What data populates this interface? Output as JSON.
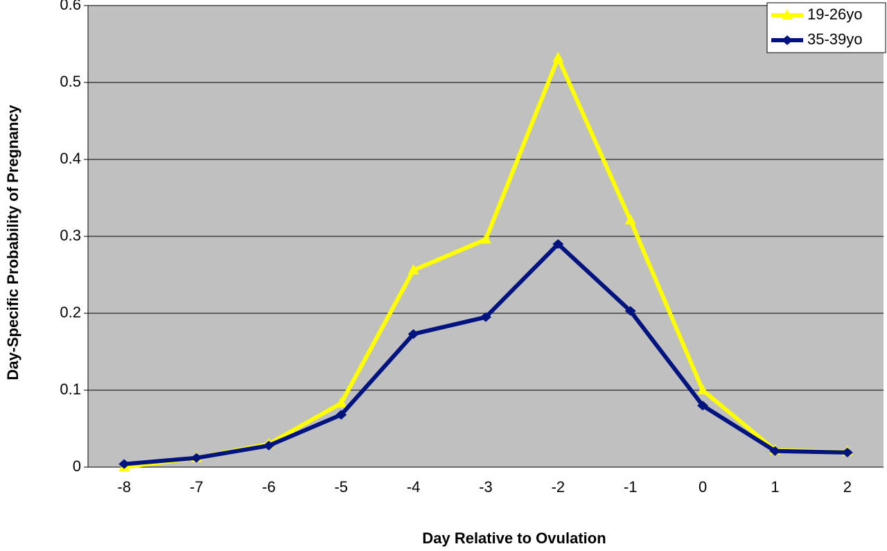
{
  "chart_data": {
    "type": "line",
    "x_label": "Day Relative to Ovulation",
    "y_label": "Day-Specific Probability of Pregnancy",
    "categories": [
      "-8",
      "-7",
      "-6",
      "-5",
      "-4",
      "-3",
      "-2",
      "-1",
      "0",
      "1",
      "2"
    ],
    "series": [
      {
        "name": "19-26yo",
        "color": "#ffff00",
        "marker": "triangle",
        "values": [
          0,
          0.012,
          0.03,
          0.083,
          0.256,
          0.296,
          0.532,
          0.321,
          0.1,
          0.022,
          0.02
        ]
      },
      {
        "name": "35-39yo",
        "color": "#00137f",
        "marker": "diamond",
        "values": [
          0.004,
          0.012,
          0.028,
          0.068,
          0.173,
          0.195,
          0.29,
          0.203,
          0.08,
          0.021,
          0.019
        ]
      }
    ],
    "ylim": [
      0,
      0.6
    ],
    "yticks": [
      0,
      0.1,
      0.2,
      0.3,
      0.4,
      0.5,
      0.6
    ],
    "grid": true,
    "legend": "top-right"
  }
}
